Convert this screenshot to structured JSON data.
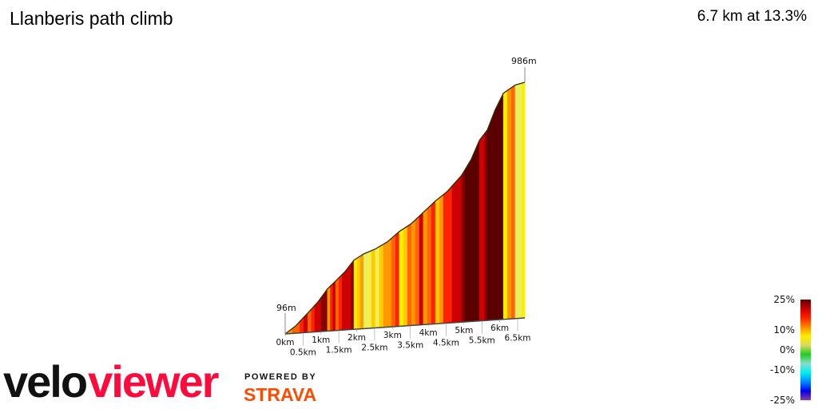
{
  "header": {
    "title": "Llanberis path climb",
    "summary": "6.7 km at 13.3%"
  },
  "chart_data": {
    "type": "area",
    "title": "Llanberis path climb",
    "xlabel": "",
    "ylabel": "",
    "x_unit": "km",
    "distance_km": [
      0,
      0.29,
      0.63,
      0.92,
      1.18,
      1.41,
      1.68,
      1.92,
      2.19,
      2.52,
      2.86,
      3.19,
      3.53,
      3.86,
      4.2,
      4.53,
      4.93,
      5.2,
      5.43,
      5.65,
      5.87,
      6.1,
      6.43,
      6.7
    ],
    "elevation_m": [
      96,
      123,
      169,
      209,
      255,
      283,
      317,
      357,
      378,
      394,
      418,
      454,
      481,
      520,
      560,
      593,
      650,
      708,
      778,
      815,
      889,
      950,
      978,
      986
    ],
    "xlim": [
      0,
      6.7
    ],
    "ylim": [
      96,
      986
    ],
    "x_ticks": [
      "0km",
      "0.5km",
      "1km",
      "1.5km",
      "2km",
      "2.5km",
      "3km",
      "3.5km",
      "4km",
      "4.5km",
      "5km",
      "5.5km",
      "6km",
      "6.5km"
    ],
    "x_tick_values": [
      0,
      0.5,
      1,
      1.5,
      2,
      2.5,
      3,
      3.5,
      4,
      4.5,
      5,
      5.5,
      6,
      6.5
    ],
    "start_label": "96m",
    "end_label": "986m",
    "color_by": "gradient",
    "legend": {
      "placement": "bottom-right",
      "labels": [
        "25%",
        "10%",
        "0%",
        "-10%",
        "-25%"
      ],
      "values": [
        25,
        10,
        0,
        -10,
        -25
      ],
      "colors": [
        "#5a0000",
        "#cc0000",
        "#ff2200",
        "#ff8800",
        "#ffee00",
        "#d8d860",
        "#22cc22",
        "#88ddcc",
        "#00eeee",
        "#0088ff",
        "#0000ee",
        "#884499"
      ]
    }
  },
  "branding": {
    "logo_part1": "velo",
    "logo_part2": "viewer",
    "powered_by": "POWERED BY",
    "strava": "STRAVA"
  },
  "colors": {
    "logo_red": "#ff0a3c",
    "strava_orange": "#fc4c02"
  }
}
